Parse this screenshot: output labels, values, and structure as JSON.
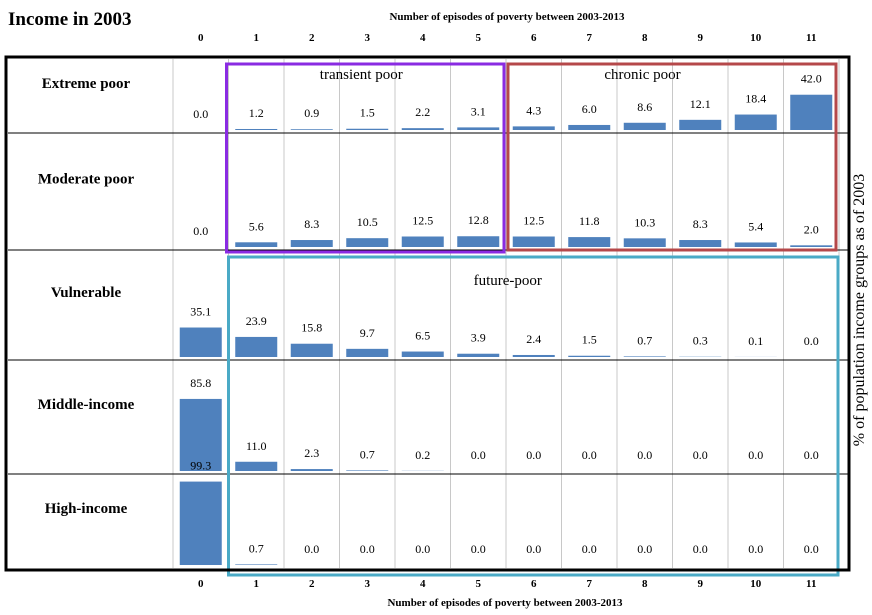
{
  "chart_data": {
    "type": "bar",
    "title": "Income in 2003",
    "top_axis_title": "Number of episodes of poverty between 2003-2013",
    "bottom_axis_title": "Number of episodes of poverty between 2003-2013",
    "right_label": "% of population income groups as of 2003",
    "categories": [
      "0",
      "1",
      "2",
      "3",
      "4",
      "5",
      "6",
      "7",
      "8",
      "9",
      "10",
      "11"
    ],
    "ylim": [
      0,
      100
    ],
    "bar_color": "#4f81bd",
    "series": [
      {
        "name": "Extreme poor",
        "values": [
          "0.0",
          "1.2",
          "0.9",
          "1.5",
          "2.2",
          "3.1",
          "4.3",
          "6.0",
          "8.6",
          "12.1",
          "18.4",
          "42.0"
        ]
      },
      {
        "name": "Moderate poor",
        "values": [
          "0.0",
          "5.6",
          "8.3",
          "10.5",
          "12.5",
          "12.8",
          "12.5",
          "11.8",
          "10.3",
          "8.3",
          "5.4",
          "2.0"
        ]
      },
      {
        "name": "Vulnerable",
        "values": [
          "35.1",
          "23.9",
          "15.8",
          "9.7",
          "6.5",
          "3.9",
          "2.4",
          "1.5",
          "0.7",
          "0.3",
          "0.1",
          "0.0"
        ]
      },
      {
        "name": "Middle-income",
        "values": [
          "85.8",
          "11.0",
          "2.3",
          "0.7",
          "0.2",
          "0.0",
          "0.0",
          "0.0",
          "0.0",
          "0.0",
          "0.0",
          "0.0"
        ]
      },
      {
        "name": "High-income",
        "values": [
          "99.3",
          "0.7",
          "0.0",
          "0.0",
          "0.0",
          "0.0",
          "0.0",
          "0.0",
          "0.0",
          "0.0",
          "0.0",
          "0.0"
        ]
      }
    ],
    "annotations": [
      {
        "label": "transient poor",
        "color": "#8a2be2"
      },
      {
        "label": "chronic poor",
        "color": "#b5484a"
      },
      {
        "label": "future-poor",
        "color": "#4aaac6"
      }
    ]
  }
}
